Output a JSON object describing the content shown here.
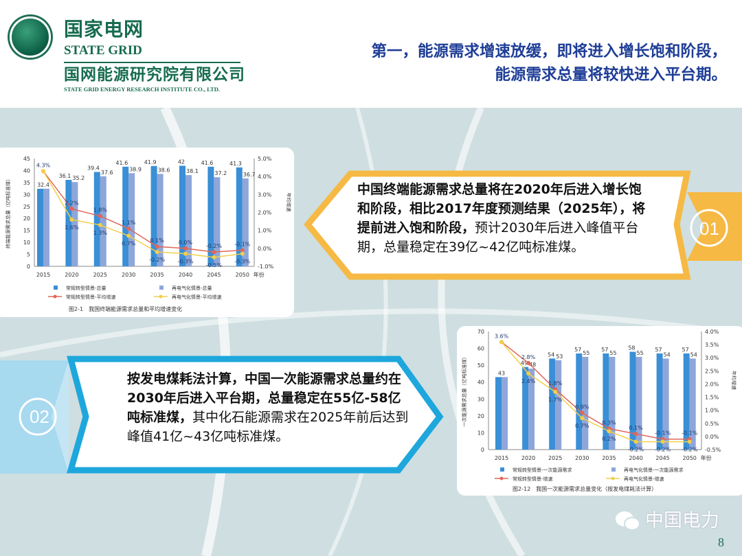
{
  "header": {
    "logo_cn": "国家电网",
    "logo_en": "STATE GRID",
    "institute_cn": "国网能源研究院有限公司",
    "institute_en": "STATE GRID ENERGY RESEARCH INSTITUTE CO., LTD.",
    "title_line1": "第一，能源需求增速放缓，即将进入增长饱和阶段，",
    "title_line2": "能源需求总量将较快进入平台期。"
  },
  "callout1": {
    "number": "01",
    "bold_text": "中国终端能源需求总量将在2020年后进入增长饱和阶段，相比2017年度预测结果（2025年），将提前进入饱和阶段，",
    "normal_text": "预计2030年后进入峰值平台期，总量稳定在39亿~42亿吨标准煤。",
    "color": "#f6b944"
  },
  "callout2": {
    "number": "02",
    "bold_text": "按发电煤耗法计算，中国一次能源需求总量约在2030年后进入平台期，总量稳定在55亿-58亿吨标准煤，",
    "normal_text": "其中化石能源需求在2025年前后达到峰值41亿~43亿吨标准煤。",
    "color": "#1ea7dc"
  },
  "footer": {
    "watermark": "中国电力",
    "page_number": "8"
  },
  "chart_data": [
    {
      "type": "bar+line",
      "title": "图2-1　我国终端能源需求总量和平均增速变化",
      "ylabel": "终端能源需求总量（亿吨标准煤）",
      "y2label": "年均增速",
      "xlabel": "年份",
      "categories": [
        "2015",
        "2020",
        "2025",
        "2030",
        "2035",
        "2040",
        "2045",
        "2050"
      ],
      "ylim": [
        0,
        45
      ],
      "yticks": [
        0,
        5,
        10,
        15,
        20,
        25,
        30,
        35,
        40,
        45
      ],
      "y2lim": [
        -1.0,
        5.0
      ],
      "y2ticks": [
        "-1.0%",
        "0.0%",
        "1.0%",
        "2.0%",
        "3.0%",
        "4.0%",
        "5.0%"
      ],
      "bar_series": [
        {
          "name": "常规转型情景-总量",
          "color": "#3a8fd6",
          "values": [
            32.4,
            36.1,
            39.4,
            41.6,
            41.9,
            42.0,
            41.6,
            41.3
          ]
        },
        {
          "name": "再电气化情景-总量",
          "color": "#8ea6da",
          "values": [
            32.4,
            35.2,
            37.6,
            38.9,
            38.6,
            38.1,
            37.2,
            36.7
          ]
        }
      ],
      "line_series": [
        {
          "name": "常规转型情景-平均增速",
          "color": "#e0675a",
          "values": [
            4.3,
            2.2,
            1.8,
            1.1,
            0.1,
            0.0,
            -0.2,
            -0.1
          ],
          "labels": [
            "4.3%",
            "2.2%",
            "1.8%",
            "1.1%",
            "0.1%",
            "0.0%",
            "-0.2%",
            "-0.1%"
          ]
        },
        {
          "name": "再电气化情景-平均增速",
          "color": "#f2cf4a",
          "values": [
            4.3,
            1.6,
            1.3,
            0.7,
            -0.2,
            -0.3,
            -0.5,
            -0.3
          ],
          "labels": [
            "",
            "1.6%",
            "1.3%",
            "0.7%",
            "-0.2%",
            "-0.3%",
            "-0.5%",
            "-0.3%"
          ]
        }
      ],
      "bar_labels_shown": [
        [
          true,
          true,
          true,
          true,
          true,
          true,
          true,
          true
        ],
        [
          false,
          true,
          true,
          true,
          true,
          true,
          true,
          true
        ]
      ],
      "legend": "bottom",
      "grid": false
    },
    {
      "type": "bar+line",
      "title": "图2-12　我国一次能源需求总量变化（按发电煤耗法计算）",
      "ylabel": "一次能源需求总量（亿吨标准煤）",
      "y2label": "年均增速",
      "xlabel": "年份",
      "categories": [
        "2015",
        "2020",
        "2025",
        "2030",
        "2035",
        "2040",
        "2045",
        "2050"
      ],
      "ylim": [
        0,
        70
      ],
      "yticks": [
        0,
        10,
        20,
        30,
        40,
        50,
        60,
        70
      ],
      "y2lim": [
        -0.5,
        4.0
      ],
      "y2ticks": [
        "-0.5%",
        "0.0%",
        "0.5%",
        "1.0%",
        "1.5%",
        "2.0%",
        "2.5%",
        "3.0%",
        "3.5%",
        "4.0%"
      ],
      "bar_series": [
        {
          "name": "常规转型情景-一次能源需求",
          "color": "#3a8fd6",
          "values": [
            43,
            49,
            54,
            57,
            57,
            58,
            57,
            57
          ]
        },
        {
          "name": "再电气化情景-一次能源需求",
          "color": "#8ea6da",
          "values": [
            43,
            48,
            53,
            55,
            55,
            55,
            54,
            54
          ]
        }
      ],
      "line_series": [
        {
          "name": "常规转型情景-增速",
          "color": "#e0675a",
          "values": [
            3.6,
            2.8,
            1.8,
            0.9,
            0.3,
            0.1,
            -0.1,
            -0.1
          ],
          "labels": [
            "3.6%",
            "2.8%",
            "1.8%",
            "0.9%",
            "0.3%",
            "0.1%",
            "-0.1%",
            "-0.1%"
          ]
        },
        {
          "name": "再电气化情景-增速",
          "color": "#f2cf4a",
          "values": [
            3.6,
            2.4,
            1.7,
            0.7,
            0.2,
            -0.2,
            -0.2,
            -0.2
          ],
          "labels": [
            "",
            "2.4%",
            "1.7%",
            "0.7%",
            "0.2%",
            "-0.2%",
            "-0.2%",
            "-0.2%"
          ]
        }
      ],
      "bar_labels_shown": [
        [
          true,
          true,
          true,
          true,
          true,
          true,
          true,
          true
        ],
        [
          false,
          true,
          true,
          true,
          true,
          true,
          true,
          true
        ]
      ],
      "legend": "bottom",
      "grid": false
    }
  ]
}
